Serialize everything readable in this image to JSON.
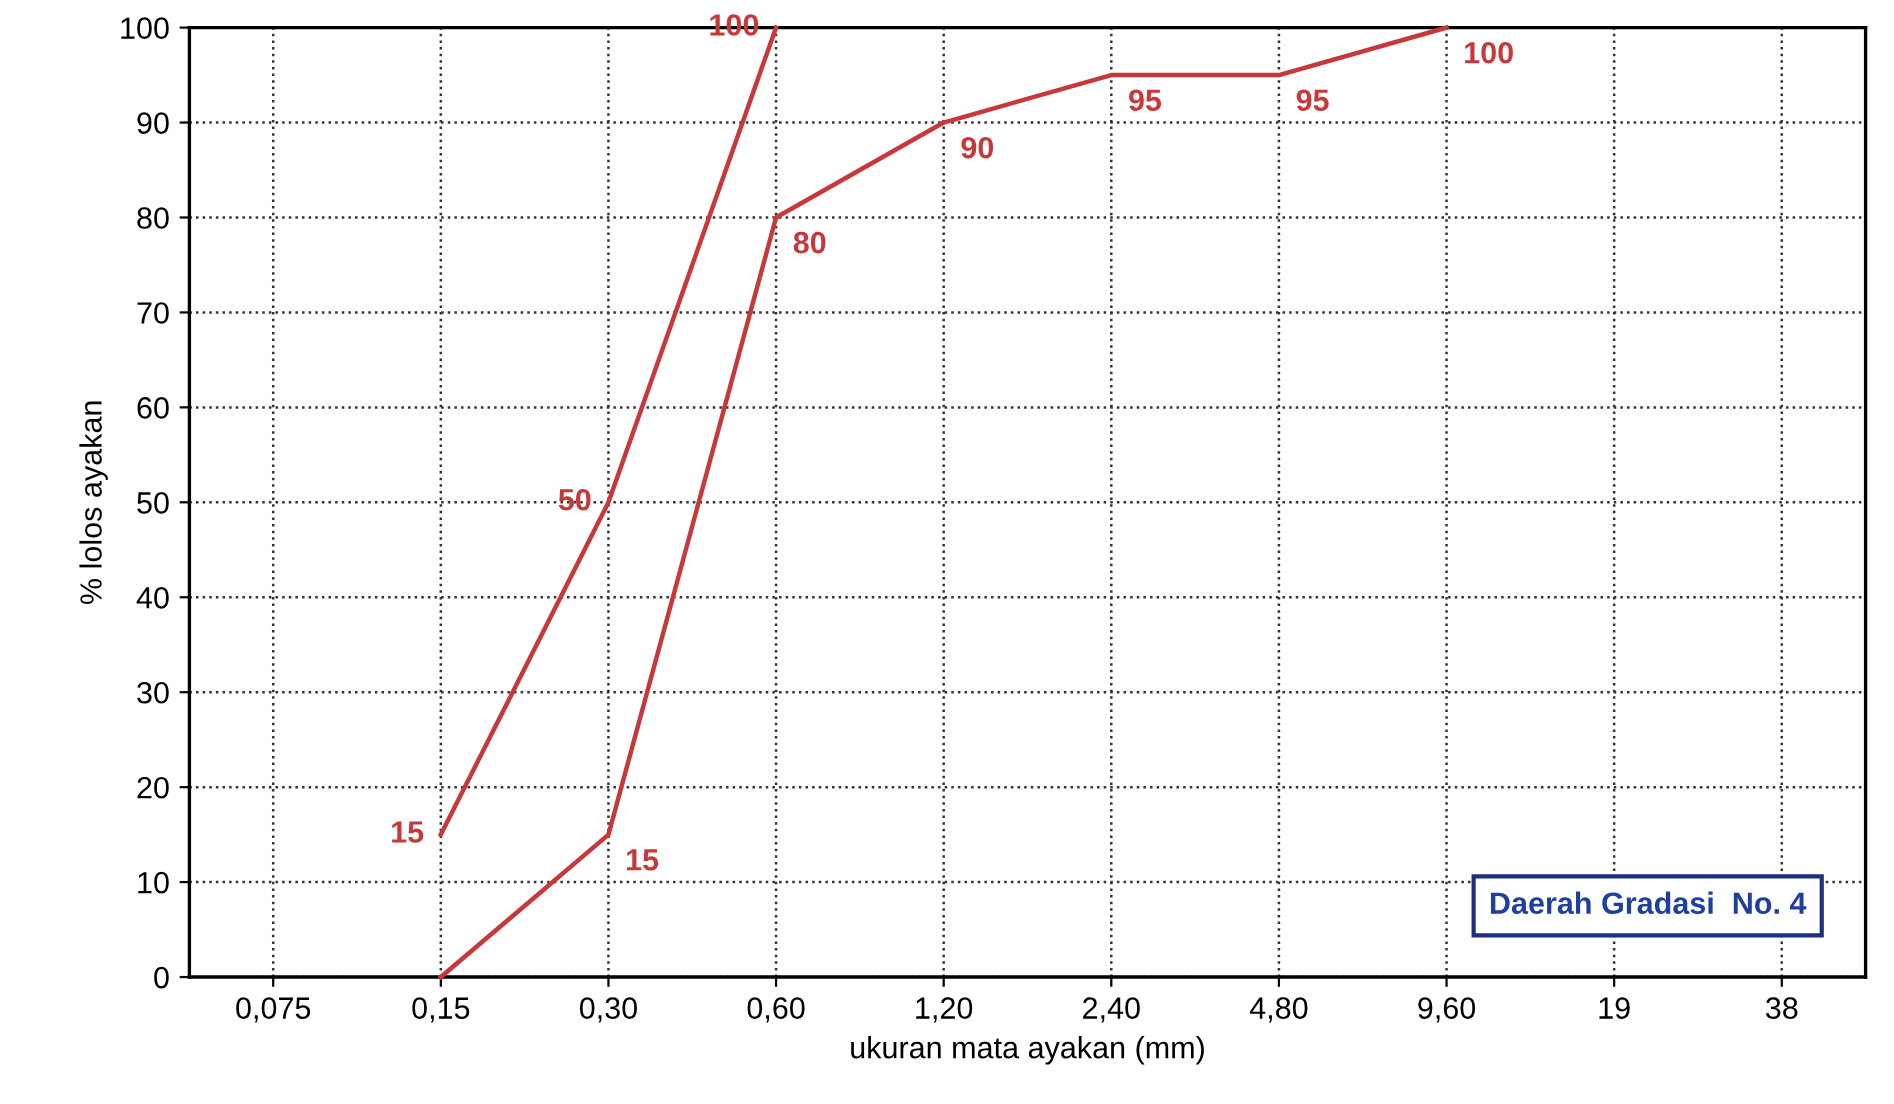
{
  "chart_data": {
    "type": "line",
    "xlabel": "ukuran mata ayakan (mm)",
    "ylabel": "% lolos ayakan",
    "categories": [
      "0,075",
      "0,15",
      "0,30",
      "0,60",
      "1,20",
      "2,40",
      "4,80",
      "9,60",
      "19",
      "38"
    ],
    "series": [
      {
        "color": "#c8383a",
        "values": [
          null,
          15,
          50,
          100,
          null,
          null,
          null,
          null,
          null,
          null
        ],
        "value_labels": [
          null,
          "15",
          "50",
          "100",
          null,
          null,
          null,
          null,
          null,
          null
        ]
      },
      {
        "color": "#c8383a",
        "values": [
          null,
          0,
          15,
          80,
          90,
          95,
          95,
          100,
          null,
          null
        ],
        "value_labels": [
          null,
          null,
          "15",
          "80",
          "90",
          "95",
          "95",
          "100",
          null,
          null
        ]
      }
    ],
    "ylim": [
      0,
      100
    ],
    "yticks": [
      0,
      10,
      20,
      30,
      40,
      50,
      60,
      70,
      80,
      90,
      100
    ],
    "grid": true,
    "marker": "none",
    "line_style": "solid",
    "annotations": [
      "Daerah Gradasi  No. 4"
    ]
  }
}
